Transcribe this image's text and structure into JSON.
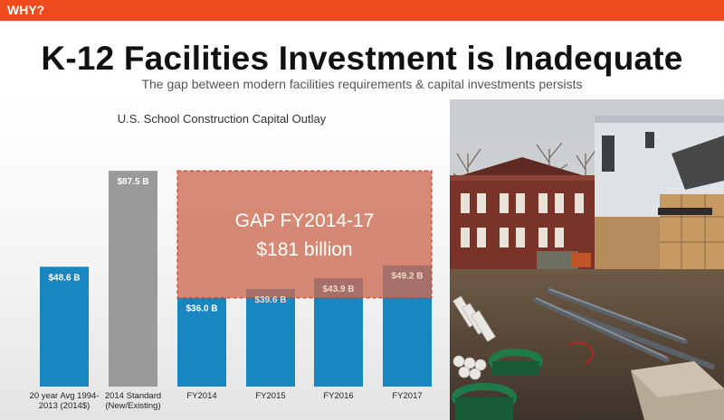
{
  "header": {
    "tag": "WHY?"
  },
  "slide": {
    "title": "K-12 Facilities Investment is Inadequate",
    "subtitle": "The gap between modern facilities requirements & capital investments persists"
  },
  "gap": {
    "line1": "GAP FY2014-17",
    "line2": "$181 billion"
  },
  "chart_data": {
    "type": "bar",
    "title": "U.S. School Construction Capital Outlay",
    "categories": [
      "20 year Avg 1994-2013 (2014$)",
      "2014 Standard (New/Existing)",
      "FY2014",
      "FY2015",
      "FY2016",
      "FY2017"
    ],
    "tick_labels": [
      [
        "20 year Avg 1994-",
        "2013 (2014$)"
      ],
      [
        "2014 Standard",
        "(New/Existing)"
      ],
      [
        "FY2014"
      ],
      [
        "FY2015"
      ],
      [
        "FY2016"
      ],
      [
        "FY2017"
      ]
    ],
    "values": [
      48.6,
      87.5,
      36.0,
      39.6,
      43.9,
      49.2
    ],
    "value_labels": [
      "$48.6 B",
      "$87.5 B",
      "$36.0 B",
      "$39.6 B",
      "$43.9 B",
      "$49.2 B"
    ],
    "colors": [
      "#1a86bf",
      "#9a9a9a",
      "#1a86bf",
      "#1a86bf",
      "#1a86bf",
      "#1a86bf"
    ],
    "ylim": [
      0,
      100
    ],
    "grid": false,
    "gap_region": {
      "from_category": 2,
      "to_category": 5,
      "y_bottom": 36.0,
      "y_top": 87.5,
      "color": "#cc6a50"
    }
  },
  "photo": {
    "subject": "school-construction-site"
  }
}
